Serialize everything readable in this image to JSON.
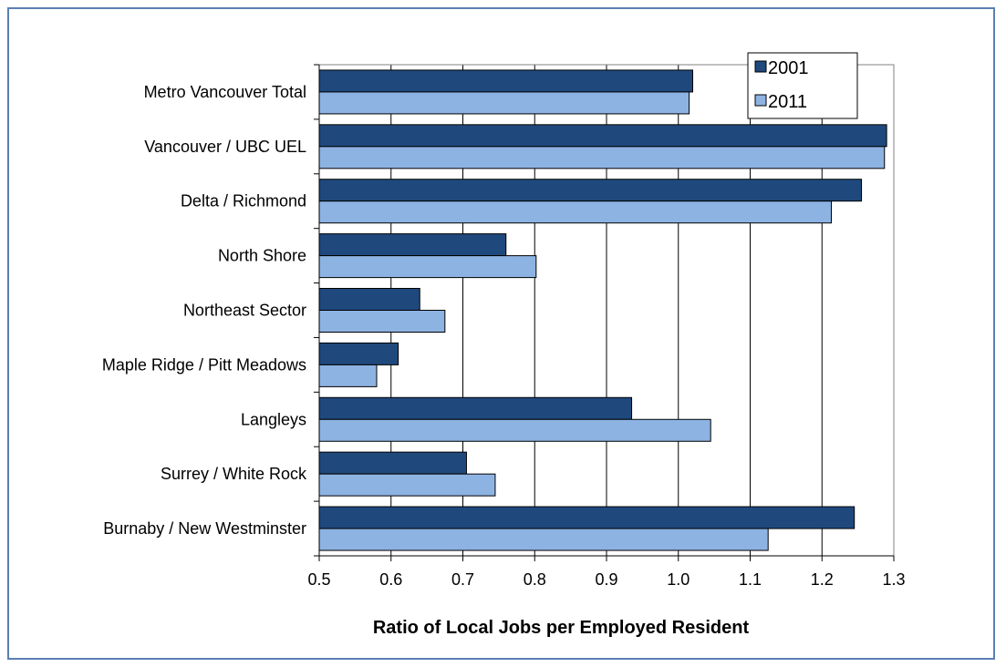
{
  "chart_data": {
    "type": "bar",
    "orientation": "horizontal",
    "categories": [
      "Metro Vancouver Total",
      "Vancouver / UBC UEL",
      "Delta / Richmond",
      "North Shore",
      "Northeast Sector",
      "Maple Ridge / Pitt Meadows",
      "Langleys",
      "Surrey / White Rock",
      "Burnaby / New Westminster"
    ],
    "series": [
      {
        "name": "2001",
        "color": "#1f497d",
        "values": [
          1.02,
          1.29,
          1.255,
          0.76,
          0.64,
          0.61,
          0.935,
          0.705,
          1.245
        ]
      },
      {
        "name": "2011",
        "color": "#8db3e2",
        "values": [
          1.015,
          1.287,
          1.213,
          0.802,
          0.675,
          0.58,
          1.045,
          0.745,
          1.125
        ]
      }
    ],
    "xlabel": "Ratio of Local Jobs per Employed Resident",
    "xlim": [
      0.5,
      1.3
    ],
    "x_ticks": [
      "0.5",
      "0.6",
      "0.7",
      "0.8",
      "0.9",
      "1.0",
      "1.1",
      "1.2",
      "1.3"
    ],
    "grid": "vertical",
    "legend_position": "top-right"
  }
}
